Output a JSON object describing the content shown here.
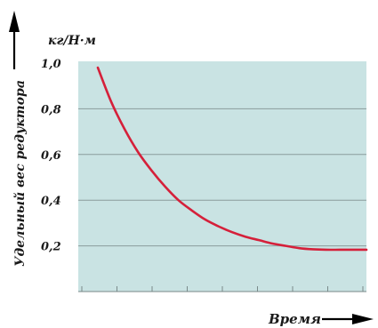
{
  "chart_data": {
    "type": "line",
    "ylabel": "Удельный вес редуктора",
    "yunit": "кг/Н·м",
    "xlabel": "Время",
    "ylim": [
      0.0,
      1.0
    ],
    "yticks": [
      "0,2",
      "0,4",
      "0,6",
      "0,8",
      "1,0"
    ],
    "ytick_values": [
      0.2,
      0.4,
      0.6,
      0.8,
      1.0
    ],
    "grid": true,
    "plot_background": "#c9e3e3",
    "line_color": "#d5203a",
    "series": [
      {
        "x": [
          0.0,
          0.05,
          0.1,
          0.15,
          0.2,
          0.25,
          0.3,
          0.35,
          0.4,
          0.45,
          0.5,
          0.55,
          0.6,
          0.65,
          0.7,
          0.75,
          0.8,
          0.85,
          0.9,
          0.95,
          1.0
        ],
        "values": [
          0.98,
          0.83,
          0.71,
          0.61,
          0.53,
          0.46,
          0.4,
          0.355,
          0.315,
          0.285,
          0.26,
          0.24,
          0.225,
          0.21,
          0.2,
          0.19,
          0.185,
          0.183,
          0.183,
          0.183,
          0.183
        ]
      }
    ]
  }
}
